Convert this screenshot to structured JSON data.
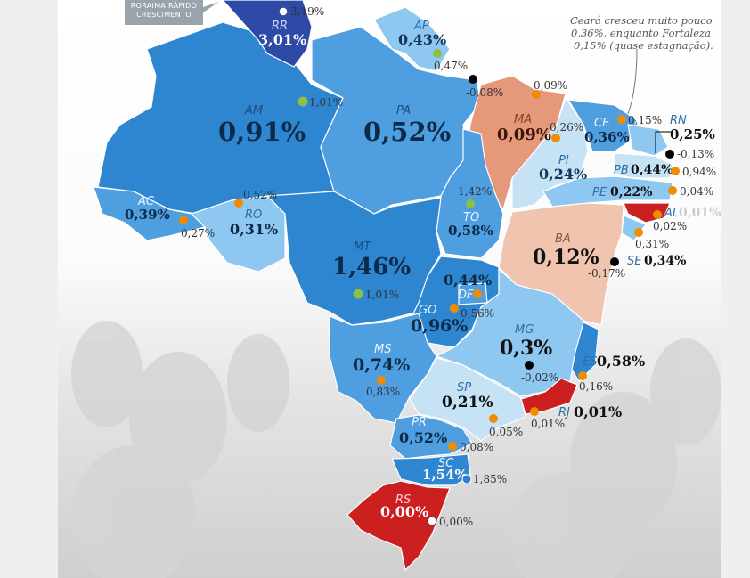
{
  "banner": {
    "line1": "RORAIMA RÁPIDO",
    "line2": "CRESCIMENTO"
  },
  "note": {
    "line1": "Ceará cresceu muito pouco",
    "line2": "0,36%, enquanto Fortaleza",
    "line3": "0,15% (quase estagnação)."
  },
  "colors": {
    "dark_blue": "#2d4aa6",
    "blue": "#2f86d0",
    "mid_blue": "#4f9fe0",
    "light_blue": "#8ec7f0",
    "pale_blue": "#c6e3f6",
    "salmon": "#e5987a",
    "peach": "#f0c4ae",
    "red": "#cc1f1f",
    "dot_green": "#8cc04a",
    "dot_orange": "#f08c00",
    "dot_black": "#000000",
    "dot_blue": "#2d7fd4"
  },
  "states": [
    {
      "abbr": "RR",
      "value": "3,01%",
      "capital": "3,19%",
      "dot": "white"
    },
    {
      "abbr": "AP",
      "value": "0,43%",
      "capital": "0,47%",
      "dot": "green"
    },
    {
      "abbr": "AM",
      "value": "0,91%",
      "capital": "1,01%",
      "dot": "green"
    },
    {
      "abbr": "PA",
      "value": "0,52%",
      "capital": "-0,08%",
      "dot": "black"
    },
    {
      "abbr": "MA",
      "value": "0,09%",
      "capital": "0,09%",
      "dot": "orange"
    },
    {
      "abbr": "PI",
      "value": "0,24%",
      "capital": "0,26%",
      "dot": "orange"
    },
    {
      "abbr": "CE",
      "value": "0,36%",
      "capital": "0,15%",
      "dot": "orange"
    },
    {
      "abbr": "RN",
      "value": "0,25%",
      "capital": "-0,13%",
      "dot": "black"
    },
    {
      "abbr": "PB",
      "value": "0,44%",
      "capital": "0,94%",
      "dot": "orange"
    },
    {
      "abbr": "PE",
      "value": "0,22%",
      "capital": "0,04%",
      "dot": "orange"
    },
    {
      "abbr": "AL",
      "value": "0,01%",
      "capital": "0,02%",
      "dot": "orange"
    },
    {
      "abbr": "SE",
      "value": "0,34%",
      "capital": "0,31%",
      "dot": "orange"
    },
    {
      "abbr": "BA",
      "value": "0,12%",
      "capital": "-0,17%",
      "dot": "black"
    },
    {
      "abbr": "AC",
      "value": "0,39%",
      "capital": "0,27%",
      "dot": "orange"
    },
    {
      "abbr": "RO",
      "value": "0,31%",
      "capital": "0,52%",
      "dot": "orange"
    },
    {
      "abbr": "TO",
      "value": "0,58%",
      "capital": "1,42%",
      "dot": "green"
    },
    {
      "abbr": "MT",
      "value": "1,46%",
      "capital": "1,01%",
      "dot": "green"
    },
    {
      "abbr": "DF",
      "value": "0,44%",
      "capital": "0,56%",
      "dot": "orange"
    },
    {
      "abbr": "GO",
      "value": "0,96%",
      "capital": "0,56%",
      "dot": "orange"
    },
    {
      "abbr": "MG",
      "value": "0,3%",
      "capital": "-0,02%",
      "dot": "black"
    },
    {
      "abbr": "ES",
      "value": "0,58%",
      "capital": "0,16%",
      "dot": "orange"
    },
    {
      "abbr": "RJ",
      "value": "0,01%",
      "capital": "0,01%",
      "dot": "orange"
    },
    {
      "abbr": "MS",
      "value": "0,74%",
      "capital": "0,83%",
      "dot": "orange"
    },
    {
      "abbr": "SP",
      "value": "0,21%",
      "capital": "0,05%",
      "dot": "orange"
    },
    {
      "abbr": "PR",
      "value": "0,52%",
      "capital": "0,08%",
      "dot": "orange"
    },
    {
      "abbr": "SC",
      "value": "1,54%",
      "capital": "1,85%",
      "dot": "blue"
    },
    {
      "abbr": "RS",
      "value": "0,00%",
      "capital": "0,00%",
      "dot": "white"
    }
  ]
}
